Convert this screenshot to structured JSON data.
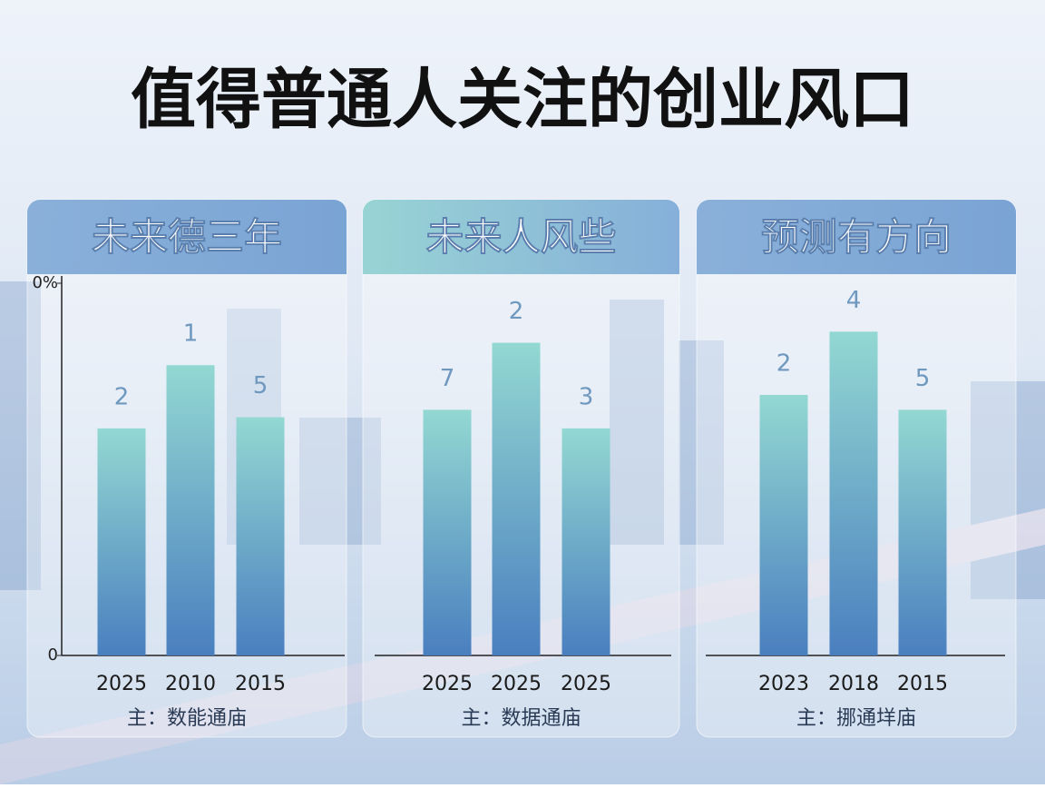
{
  "title": "值得普通人关注的创业风口",
  "chart_data": [
    {
      "type": "bar",
      "title": "未来德三年",
      "categories": [
        "2025",
        "2010",
        "2015"
      ],
      "values": [
        61,
        78,
        64
      ],
      "annotations": [
        "2",
        "1",
        "5"
      ],
      "source": "主：数能通庙",
      "colors": [
        "#93d8d2",
        "#4a7fbf"
      ],
      "ylim": [
        0,
        100
      ],
      "yticks": [
        0,
        {
          "value": 100,
          "label": "0%"
        }
      ]
    },
    {
      "type": "bar",
      "title": "未来人风些",
      "categories": [
        "2025",
        "2025",
        "2025"
      ],
      "values": [
        66,
        84,
        61
      ],
      "annotations": [
        "7",
        "2",
        "3"
      ],
      "source": "主：数据通庙",
      "colors": [
        "#93d8d2",
        "#4a7fbf"
      ],
      "ylim": [
        0,
        100
      ]
    },
    {
      "type": "bar",
      "title": "预测有方向",
      "categories": [
        "2023",
        "2018",
        "2015"
      ],
      "values": [
        70,
        87,
        66
      ],
      "annotations": [
        "2",
        "4",
        "5"
      ],
      "source": "主：挪通垟庙",
      "colors": [
        "#93d8d2",
        "#4a7fbf"
      ],
      "ylim": [
        0,
        100
      ]
    }
  ]
}
